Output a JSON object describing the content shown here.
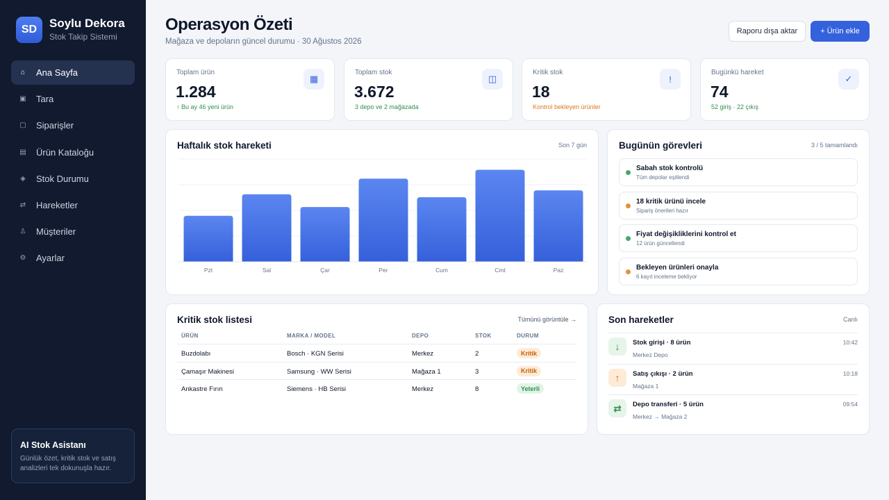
{
  "brand": {
    "initials": "SD",
    "name": "Soylu Dekora",
    "subtitle": "Stok Takip Sistemi"
  },
  "sidebar": {
    "items": [
      {
        "label": "Ana Sayfa",
        "icon": "home-icon",
        "glyph": "⌂",
        "active": true
      },
      {
        "label": "Tara",
        "icon": "scan-icon",
        "glyph": "▣"
      },
      {
        "label": "Siparişler",
        "icon": "orders-icon",
        "glyph": "▢"
      },
      {
        "label": "Ürün Kataloğu",
        "icon": "catalog-icon",
        "glyph": "▤"
      },
      {
        "label": "Stok Durumu",
        "icon": "stock-icon",
        "glyph": "◈"
      },
      {
        "label": "Hareketler",
        "icon": "transfer-icon",
        "glyph": "⇄"
      },
      {
        "label": "Müşteriler",
        "icon": "customers-icon",
        "glyph": "♙"
      },
      {
        "label": "Ayarlar",
        "icon": "gear-icon",
        "glyph": "⚙"
      }
    ],
    "ai": {
      "title": "AI Stok Asistanı",
      "desc": "Günlük özet, kritik stok ve satış analizleri tek dokunuşla hazır."
    }
  },
  "header": {
    "title": "Operasyon Özeti",
    "subtitle": "Mağaza ve depoların güncel durumu · 30 Ağustos 2026",
    "export_label": "Raporu dışa aktar",
    "add_label": "+ Ürün ekle"
  },
  "stats": [
    {
      "label": "Toplam ürün",
      "value": "1.284",
      "note": "↑ Bu ay 46 yeni ürün",
      "note_color": "green",
      "icon": "grid-icon",
      "glyph": "▦"
    },
    {
      "label": "Toplam stok",
      "value": "3.672",
      "note": "3 depo ve 2 mağazada",
      "note_color": "green",
      "icon": "warehouse-icon",
      "glyph": "◫"
    },
    {
      "label": "Kritik stok",
      "value": "18",
      "note": "Kontrol bekleyen ürünler",
      "note_color": "orange",
      "icon": "alert-icon",
      "glyph": "!"
    },
    {
      "label": "Bugünkü hareket",
      "value": "74",
      "note": "52 giriş · 22 çıkış",
      "note_color": "green",
      "icon": "check-icon",
      "glyph": "✓"
    }
  ],
  "weekly": {
    "title": "Haftalık stok hareketi",
    "meta": "Son 7 gün"
  },
  "chart_data": {
    "type": "bar",
    "title": "Haftalık stok hareketi",
    "categories": [
      "Pzt",
      "Sal",
      "Çar",
      "Per",
      "Cum",
      "Cmt",
      "Paz"
    ],
    "values": [
      47,
      69,
      56,
      85,
      66,
      94,
      73
    ],
    "ylim": [
      0,
      105
    ],
    "grid": true,
    "colors": {
      "bar_top": "#5b86f0",
      "bar_bottom": "#3560db"
    }
  },
  "tasks": {
    "title": "Bugünün görevleri",
    "meta": "3 / 5 tamamlandı",
    "items": [
      {
        "title": "Sabah stok kontrolü",
        "sub": "Tüm depolar eşitlendi",
        "color": "#45a86a"
      },
      {
        "title": "18 kritik ürünü incele",
        "sub": "Sipariş önerileri hazır",
        "color": "#e4913c"
      },
      {
        "title": "Fiyat değişikliklerini kontrol et",
        "sub": "12 ürün güncellendi",
        "color": "#45a86a"
      },
      {
        "title": "Bekleyen ürünleri onayla",
        "sub": "6 kayıt inceleme bekliyor",
        "color": "#e4913c"
      }
    ]
  },
  "critical": {
    "title": "Kritik stok listesi",
    "link": "Tümünü görüntüle →",
    "columns": [
      "ÜRÜN",
      "MARKA / MODEL",
      "DEPO",
      "STOK",
      "DURUM"
    ],
    "rows": [
      {
        "product": "Buzdolabı",
        "brand": "Bosch · KGN Serisi",
        "depot": "Merkez",
        "stock": "2",
        "status": "Kritik",
        "status_type": "crit"
      },
      {
        "product": "Çamaşır Makinesi",
        "brand": "Samsung · WW Serisi",
        "depot": "Mağaza 1",
        "stock": "3",
        "status": "Kritik",
        "status_type": "crit"
      },
      {
        "product": "Ankastre Fırın",
        "brand": "Siemens · HB Serisi",
        "depot": "Merkez",
        "stock": "8",
        "status": "Yeterli",
        "status_type": "ok"
      }
    ]
  },
  "movements": {
    "title": "Son hareketler",
    "meta": "Canlı",
    "items": [
      {
        "title": "Stok girişi · 8 ürün",
        "sub": "Merkez Depo",
        "time": "10:42",
        "icon": "arrow-down-icon",
        "glyph": "↓",
        "bg": "#e6f4ea",
        "fg": "#2f8f4f"
      },
      {
        "title": "Satış çıkışı · 2 ürün",
        "sub": "Mağaza 1",
        "time": "10:18",
        "icon": "arrow-up-icon",
        "glyph": "↑",
        "bg": "#fdebd7",
        "fg": "#d06d15"
      },
      {
        "title": "Depo transferi · 5 ürün",
        "sub": "Merkez → Mağaza 2",
        "time": "09:54",
        "icon": "transfer-icon",
        "glyph": "⇄",
        "bg": "#e6f4ea",
        "fg": "#2f8f4f"
      }
    ]
  }
}
